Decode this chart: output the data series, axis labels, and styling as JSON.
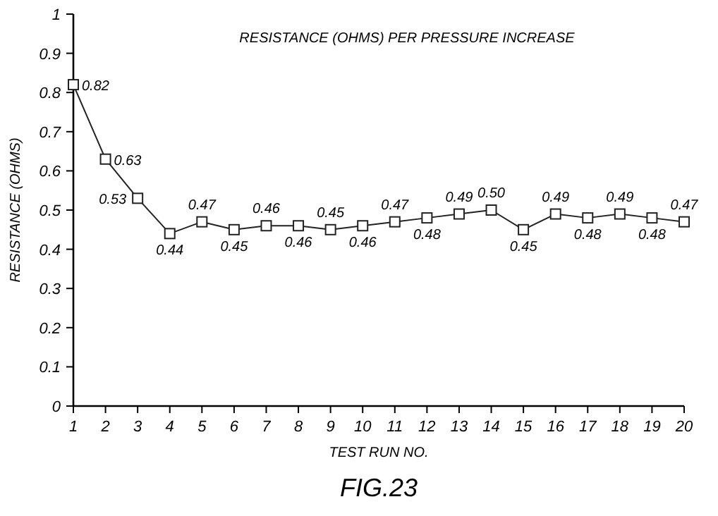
{
  "chart_data": {
    "type": "line",
    "title": "RESISTANCE (OHMS) PER PRESSURE INCREASE",
    "xlabel": "TEST RUN NO.",
    "ylabel": "RESISTANCE (OHMS)",
    "annotations": [
      "FIG.23"
    ],
    "x": [
      1,
      2,
      3,
      4,
      5,
      6,
      7,
      8,
      9,
      10,
      11,
      12,
      13,
      14,
      15,
      16,
      17,
      18,
      19,
      20
    ],
    "series": [
      {
        "color": "#222222",
        "values": [
          0.82,
          0.63,
          0.53,
          0.44,
          0.47,
          0.45,
          0.46,
          0.46,
          0.45,
          0.46,
          0.47,
          0.48,
          0.49,
          0.5,
          0.45,
          0.49,
          0.48,
          0.49,
          0.48,
          0.47
        ]
      }
    ],
    "value_labels": [
      "0.82",
      "0.63",
      "0.53",
      "0.44",
      "0.47",
      "0.45",
      "0.46",
      "0.46",
      "0.45",
      "0.46",
      "0.47",
      "0.48",
      "0.49",
      "0.50",
      "0.45",
      "0.49",
      "0.48",
      "0.49",
      "0.48",
      "0.47"
    ],
    "xlim": [
      1,
      20
    ],
    "xticks": [
      1,
      2,
      3,
      4,
      5,
      6,
      7,
      8,
      9,
      10,
      11,
      12,
      13,
      14,
      15,
      16,
      17,
      18,
      19,
      20
    ],
    "ylim": [
      0,
      1
    ],
    "yticks": [
      0,
      0.1,
      0.2,
      0.3,
      0.4,
      0.5,
      0.6,
      0.7,
      0.8,
      0.9,
      {
        "value": 1,
        "label": "1"
      }
    ],
    "grid": false,
    "marker": "square",
    "line_style": "solid"
  }
}
